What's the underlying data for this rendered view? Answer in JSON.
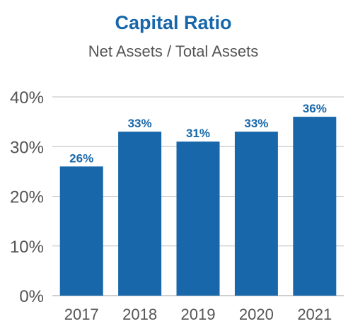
{
  "chart_data": {
    "type": "bar",
    "title": "Capital Ratio",
    "subtitle": "Net Assets / Total Assets",
    "xlabel": "",
    "ylabel": "",
    "categories": [
      "2017",
      "2018",
      "2019",
      "2020",
      "2021"
    ],
    "values": [
      26,
      33,
      31,
      33,
      36
    ],
    "data_labels": [
      "26%",
      "33%",
      "31%",
      "33%",
      "36%"
    ],
    "ylim": [
      0,
      40
    ],
    "yticks": [
      0,
      10,
      20,
      30,
      40
    ],
    "ytick_labels": [
      "0%",
      "10%",
      "20%",
      "30%",
      "40%"
    ],
    "grid": true,
    "legend": "none",
    "colors": {
      "bar": "#1767aa",
      "title": "#1767aa",
      "data_label": "#1767aa",
      "gridline": "#bfbfbf",
      "text": "#555555"
    }
  }
}
